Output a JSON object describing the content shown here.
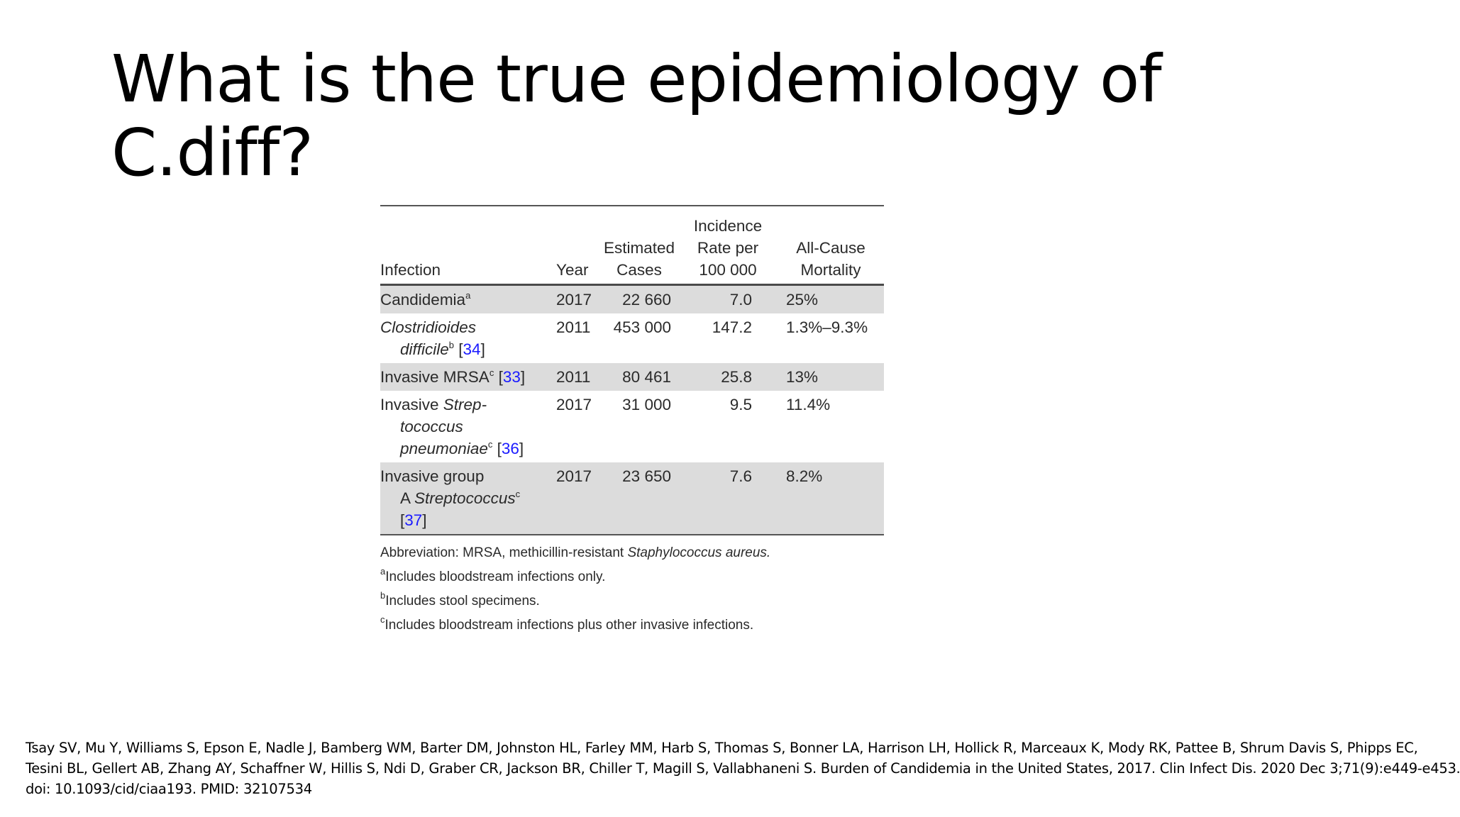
{
  "slide": {
    "title_line1": "What is the true epidemiology of",
    "title_line2": "C.diff?"
  },
  "table": {
    "headers": {
      "infection": "Infection",
      "year": "Year",
      "cases_l1": "Estimated",
      "cases_l2": "Cases",
      "rate_l1": "Incidence",
      "rate_l2": "Rate per",
      "rate_l3": "100 000",
      "mortality_l1": "All-Cause",
      "mortality_l2": "Mortality"
    },
    "rows": [
      {
        "infection_l1": "Candidemia",
        "sup": "a",
        "year": "2017",
        "cases": "22 660",
        "rate": "7.0",
        "mortality": "25%"
      },
      {
        "infection_l1": "Clostridioides",
        "infection_l2": "difficile",
        "sup": "b",
        "ref": "34",
        "year": "2011",
        "cases": "453 000",
        "rate": "147.2",
        "mortality": "1.3%–9.3%"
      },
      {
        "infection_l1": "Invasive MRSA",
        "sup": "c",
        "ref": "33",
        "year": "2011",
        "cases": "80 461",
        "rate": "25.8",
        "mortality": "13%"
      },
      {
        "infection_l1": "Invasive ",
        "infection_l1_italic": "Strep-",
        "infection_l2": "tococcus",
        "infection_l3": "pneumoniae",
        "sup": "c",
        "ref": "36",
        "year": "2017",
        "cases": "31 000",
        "rate": "9.5",
        "mortality": "11.4%"
      },
      {
        "infection_l1": "Invasive group",
        "infection_l2_prefix": "A ",
        "infection_l2": "Streptococcus",
        "sup": "c",
        "ref": "37",
        "year": "2017",
        "cases": "23 650",
        "rate": "7.6",
        "mortality": "8.2%"
      }
    ],
    "notes": {
      "abbreviation_prefix": "Abbreviation: MRSA, methicillin-resistant ",
      "abbreviation_italic": "Staphylococcus aureus.",
      "note_a_mark": "a",
      "note_a": "Includes bloodstream infections only.",
      "note_b_mark": "b",
      "note_b": "Includes stool specimens.",
      "note_c_mark": "c",
      "note_c": "Includes bloodstream infections plus other invasive infections."
    }
  },
  "citation": {
    "line1": "Tsay SV, Mu Y, Williams S, Epson E, Nadle J, Bamberg WM, Barter DM, Johnston HL, Farley MM, Harb S, Thomas S, Bonner LA, Harrison LH, Hollick R, Marceaux K, Mody RK, Pattee B, Shrum Davis S, Phipps EC,",
    "line2": "Tesini BL, Gellert AB, Zhang AY, Schaffner W, Hillis S, Ndi D, Graber CR, Jackson BR, Chiller T, Magill S, Vallabhaneni S. Burden of Candidemia in the United States, 2017. Clin Infect Dis. 2020 Dec 3;71(9):e449-e453.",
    "line3": "doi: 10.1093/cid/ciaa193. PMID: 32107534"
  }
}
